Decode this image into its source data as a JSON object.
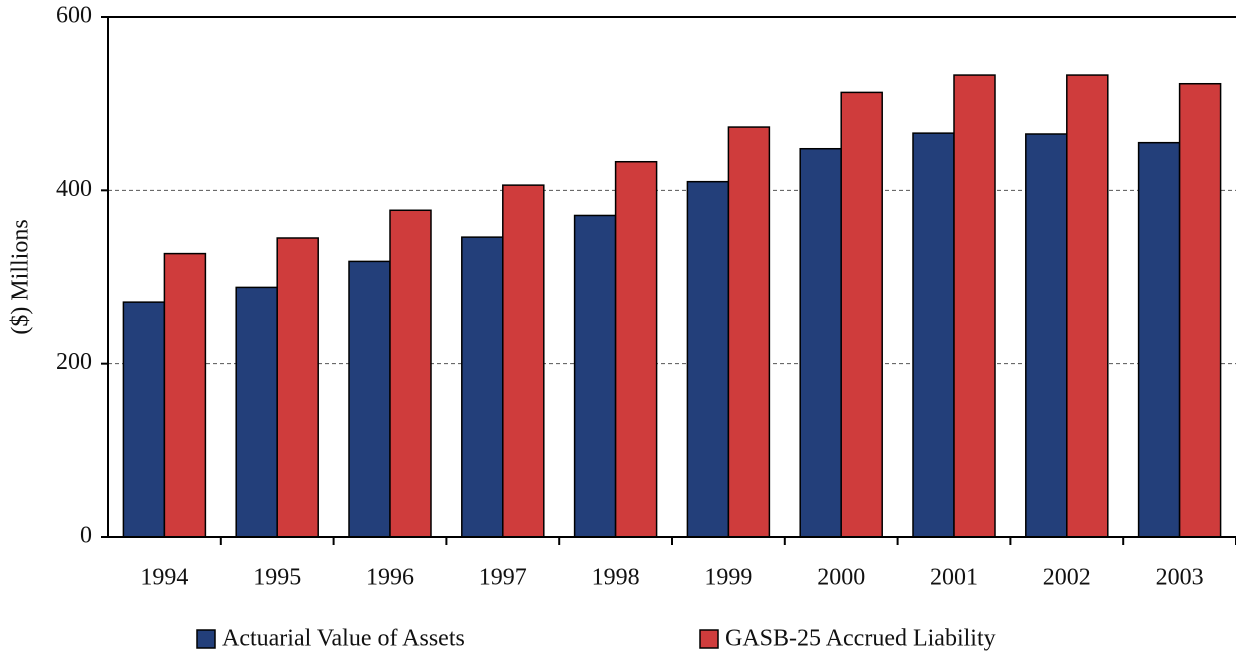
{
  "chart_data": {
    "type": "bar",
    "y_label": "($) Millions",
    "categories": [
      "1994",
      "1995",
      "1996",
      "1997",
      "1998",
      "1999",
      "2000",
      "2001",
      "2002",
      "2003"
    ],
    "series": [
      {
        "name": "Actuarial Value of Assets",
        "color": "#233f7a",
        "values": [
          271,
          288,
          318,
          346,
          371,
          410,
          448,
          466,
          465,
          455
        ]
      },
      {
        "name": "GASB-25 Accrued Liability",
        "color": "#cf3c3c",
        "values": [
          327,
          345,
          377,
          406,
          433,
          473,
          513,
          533,
          533,
          523
        ]
      }
    ],
    "ylim": [
      0,
      600
    ],
    "yticks": [
      0,
      200,
      400,
      600
    ],
    "grid": true
  }
}
